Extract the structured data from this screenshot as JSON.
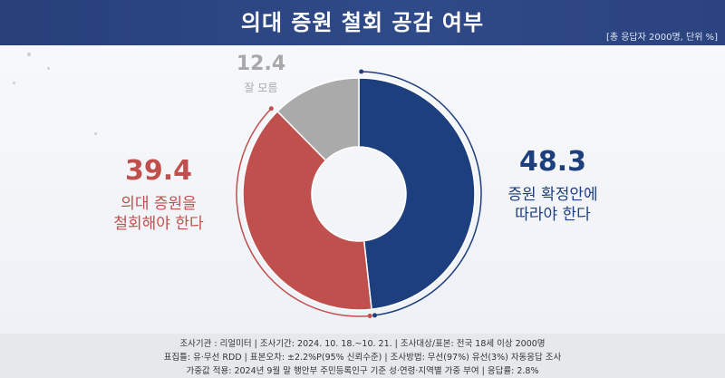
{
  "header": {
    "title": "의대 증원 철회 공감 여부",
    "note": "[총 응답자 2000명, 단위 %]"
  },
  "colors": {
    "header_bg": "#2b437f",
    "blue": "#1e3f7d",
    "red": "#c0504d",
    "gray": "#aaaaaa"
  },
  "chart_data": {
    "type": "pie",
    "donut": true,
    "slices": [
      {
        "label_lines": [
          "증원 확정안에",
          "따라야 한다"
        ],
        "value": 48.3,
        "value_text": "48.3",
        "color": "#1e3f7d"
      },
      {
        "label_lines": [
          "의대 증원을",
          "철회해야 한다"
        ],
        "value": 39.4,
        "value_text": "39.4",
        "color": "#c0504d"
      },
      {
        "label_lines": [
          "잘 모름"
        ],
        "value": 12.4,
        "value_text": "12.4",
        "color": "#aaaaaa"
      }
    ]
  },
  "footer": {
    "line1": "조사기관 : 리얼미터  |  조사기간: 2024. 10. 18.~10. 21. | 조사대상/표본: 전국 18세 이상 2000명",
    "line2": "표집틀: 유·무선 RDD | 표본오차: ±2.2%P(95% 신뢰수준) | 조사방법: 무선(97%) 유선(3%) 자동응답 조사",
    "line3": "가중값 적용: 2024년 9월 말 행안부 주민등록인구 기준 성·연령·지역별 가중 부여 | 응답률: 2.8%"
  }
}
